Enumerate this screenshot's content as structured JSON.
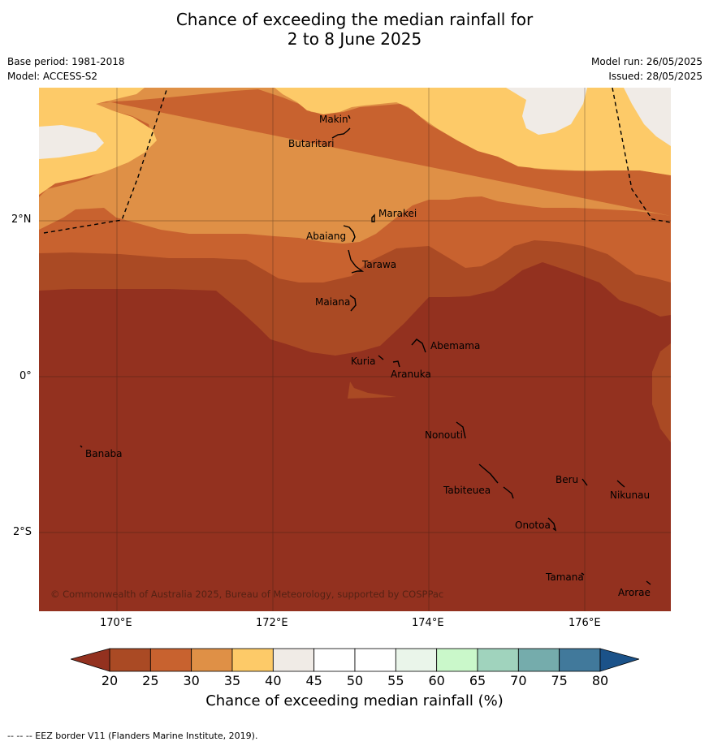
{
  "title_line1": "Chance of exceeding the median rainfall for",
  "title_line2": "2 to 8 June 2025",
  "meta": {
    "base_period": "Base period: 1981-2018",
    "model": "Model: ACCESS-S2",
    "model_run": "Model run: 26/05/2025",
    "issued": "Issued: 28/05/2025"
  },
  "map": {
    "lat_labels": [
      "2°N",
      "0°",
      "2°S"
    ],
    "lon_labels": [
      "170°E",
      "172°E",
      "174°E",
      "176°E"
    ],
    "copyright": "© Commonwealth of Australia 2025, Bureau of Meteorology, supported by COSPPac",
    "places": [
      {
        "name": "Makin"
      },
      {
        "name": "Butaritari"
      },
      {
        "name": "Marakei"
      },
      {
        "name": "Abaiang"
      },
      {
        "name": "Tarawa"
      },
      {
        "name": "Maiana"
      },
      {
        "name": "Abemama"
      },
      {
        "name": "Kuria"
      },
      {
        "name": "Aranuka"
      },
      {
        "name": "Nonouti"
      },
      {
        "name": "Banaba"
      },
      {
        "name": "Beru"
      },
      {
        "name": "Nikunau"
      },
      {
        "name": "Tabiteuea"
      },
      {
        "name": "Onotoa"
      },
      {
        "name": "Tamana"
      },
      {
        "name": "Arorae"
      }
    ]
  },
  "legend": {
    "ticks": [
      "20",
      "25",
      "30",
      "35",
      "40",
      "45",
      "50",
      "55",
      "60",
      "65",
      "70",
      "75",
      "80"
    ],
    "colors": [
      "#aa4a24",
      "#c8622f",
      "#df9046",
      "#fdca68",
      "#f0ebe6",
      "#ffffff",
      "#ffffff",
      "#eaf5ea",
      "#caf8ca",
      "#a0d3bd",
      "#75acac",
      "#41799b"
    ],
    "under_color": "#93311f",
    "over_color": "#1b5289",
    "label": "Chance of exceeding median rainfall (%)"
  },
  "footer": "--  --  -- EEZ border V11 (Flanders Marine Institute, 2019)."
}
